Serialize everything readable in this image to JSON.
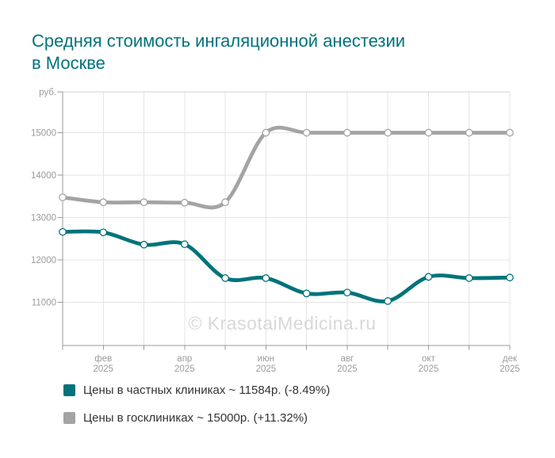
{
  "title": {
    "line1": "Средняя стоимость ингаляционной анестезии",
    "line2": "в Москве"
  },
  "chart_data": {
    "type": "line",
    "title": "Средняя стоимость ингаляционной анестезии в Москве",
    "watermark": "© KrasotaiMedicina.ru",
    "y_axis": {
      "unit_label": "руб.",
      "ticks": [
        15000,
        14000,
        13000,
        12000,
        11000
      ],
      "ylim": [
        9980,
        15960
      ],
      "grid": true
    },
    "x_axis": {
      "points_count": 12,
      "labeled_point_indices": [
        1,
        3,
        5,
        7,
        9,
        11
      ],
      "tick_labels": [
        {
          "month": "фев",
          "year": "2025"
        },
        {
          "month": "апр",
          "year": "2025"
        },
        {
          "month": "июн",
          "year": "2025"
        },
        {
          "month": "авг",
          "year": "2025"
        },
        {
          "month": "окт",
          "year": "2025"
        },
        {
          "month": "дек",
          "year": "2025"
        }
      ]
    },
    "series": [
      {
        "name": "Цены в частных клиниках",
        "color": "#00737A",
        "values": [
          12660,
          12650,
          12360,
          12370,
          11570,
          11570,
          11210,
          11230,
          11030,
          11600,
          11570,
          11584
        ]
      },
      {
        "name": "Цены в госклиниках",
        "color": "#A4A4A4",
        "values": [
          13475,
          13360,
          13360,
          13350,
          13360,
          15000,
          15000,
          15000,
          15000,
          15000,
          15000,
          15000
        ]
      }
    ],
    "legend_position": "bottom"
  },
  "legend": {
    "items": [
      {
        "label": "Цены в частных клиниках ~ 11584р. (-8.49%)",
        "color": "#00737A"
      },
      {
        "label": "Цены в госклиниках ~ 15000р. (+11.32%)",
        "color": "#A4A4A4"
      }
    ]
  },
  "colors": {
    "title": "#00737B",
    "private_series": "#00737A",
    "state_series": "#A4A4A4",
    "axis": "#999999",
    "gridline": "#E4E4E4",
    "axis_label": "#9B9B9B",
    "watermark": "#D8D8D8",
    "legend_text": "#333333"
  }
}
